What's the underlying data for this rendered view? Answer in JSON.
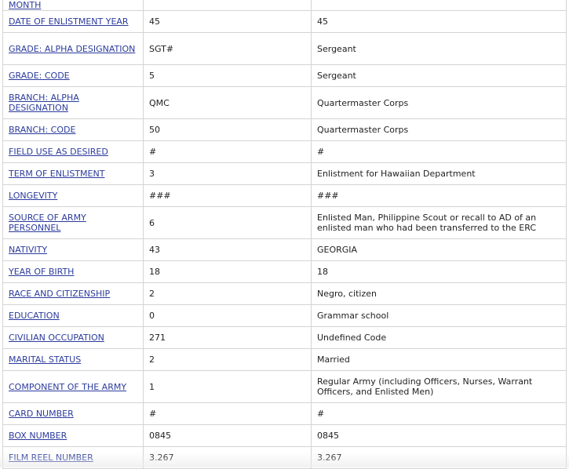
{
  "top_row": {
    "label": "MONTH"
  },
  "rows": [
    {
      "label": "DATE OF ENLISTMENT YEAR",
      "code": "45",
      "meaning": "45",
      "tall": false
    },
    {
      "label": "GRADE: ALPHA DESIGNATION",
      "code": "SGT#",
      "meaning": "Sergeant",
      "tall": true
    },
    {
      "label": "GRADE: CODE",
      "code": "5",
      "meaning": "Sergeant",
      "tall": false
    },
    {
      "label": "BRANCH: ALPHA DESIGNATION",
      "code": "QMC",
      "meaning": "Quartermaster Corps",
      "tall": true
    },
    {
      "label": "BRANCH: CODE",
      "code": "50",
      "meaning": "Quartermaster Corps",
      "tall": false
    },
    {
      "label": "FIELD USE AS DESIRED",
      "code": "#",
      "meaning": "#",
      "tall": false
    },
    {
      "label": "TERM OF ENLISTMENT",
      "code": "3",
      "meaning": "Enlistment for Hawaiian Department",
      "tall": false
    },
    {
      "label": "LONGEVITY",
      "code": "###",
      "meaning": "###",
      "tall": false
    },
    {
      "label": "SOURCE OF ARMY PERSONNEL",
      "code": "6",
      "meaning": "Enlisted Man, Philippine Scout or recall to AD of an enlisted man who had been transferred to the ERC",
      "tall": true
    },
    {
      "label": "NATIVITY",
      "code": "43",
      "meaning": "GEORGIA",
      "tall": false
    },
    {
      "label": "YEAR OF BIRTH",
      "code": "18",
      "meaning": "18",
      "tall": false
    },
    {
      "label": "RACE AND CITIZENSHIP",
      "code": "2",
      "meaning": "Negro, citizen",
      "tall": false
    },
    {
      "label": "EDUCATION",
      "code": "0",
      "meaning": "Grammar school",
      "tall": false
    },
    {
      "label": "CIVILIAN OCCUPATION",
      "code": "271",
      "meaning": "Undefined Code",
      "tall": false
    },
    {
      "label": "MARITAL STATUS",
      "code": "2",
      "meaning": "Married",
      "tall": false
    },
    {
      "label": "COMPONENT OF THE ARMY",
      "code": "1",
      "meaning": "Regular Army (including Officers, Nurses, Warrant Officers, and Enlisted Men)",
      "tall": true
    },
    {
      "label": "CARD NUMBER",
      "code": "#",
      "meaning": "#",
      "tall": false
    },
    {
      "label": "BOX NUMBER",
      "code": "0845",
      "meaning": "0845",
      "tall": false
    },
    {
      "label": "FILM REEL NUMBER",
      "code": "3.267",
      "meaning": "3.267",
      "tall": false
    }
  ]
}
